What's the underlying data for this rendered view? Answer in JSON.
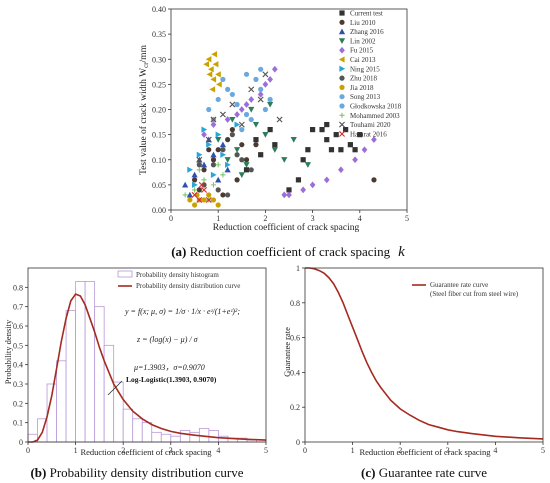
{
  "captions": {
    "a_prefix": "(a)",
    "a_text": "Reduction coefficient of crack spacing",
    "a_symbol": "k",
    "b_prefix": "(b)",
    "b_text": "Probability density distribution curve",
    "c_prefix": "(c)",
    "c_text": "Guarantee rate curve"
  },
  "chart_data": [
    {
      "id": "a",
      "type": "scatter",
      "xlabel": "Reduction coefficient of crack spacing",
      "ylabel": "Test value of crack width W",
      "ylabel_sub": "cr",
      "ylabel_unit": "/mm",
      "xlim": [
        0,
        5
      ],
      "ylim": [
        0,
        0.4
      ],
      "xticks": [
        "0",
        "1",
        "2",
        "3",
        "4",
        "5"
      ],
      "yticks": [
        "0.00",
        "0.05",
        "0.10",
        "0.15",
        "0.20",
        "0.25",
        "0.30",
        "0.35",
        "0.40"
      ],
      "legend_position": "right",
      "series": [
        {
          "name": "Current test",
          "color": "#333333",
          "marker": "square",
          "points": [
            [
              3.2,
              0.16
            ],
            [
              3.3,
              0.14
            ],
            [
              3.5,
              0.15
            ],
            [
              3.6,
              0.12
            ],
            [
              3.7,
              0.16
            ],
            [
              3.9,
              0.12
            ],
            [
              3.4,
              0.12
            ],
            [
              2.9,
              0.12
            ],
            [
              3.0,
              0.16
            ],
            [
              2.8,
              0.1
            ],
            [
              4.0,
              0.15
            ],
            [
              3.8,
              0.13
            ],
            [
              2.7,
              0.06
            ],
            [
              1.9,
              0.11
            ],
            [
              2.5,
              0.04
            ],
            [
              3.3,
              0.17
            ],
            [
              1.6,
              0.08
            ],
            [
              2.2,
              0.13
            ],
            [
              2.1,
              0.16
            ],
            [
              1.8,
              0.14
            ]
          ]
        },
        {
          "name": "Liu 2010",
          "color": "#4a3a30",
          "marker": "circle",
          "points": [
            [
              0.5,
              0.06
            ],
            [
              0.7,
              0.08
            ],
            [
              0.9,
              0.1
            ],
            [
              1.0,
              0.12
            ],
            [
              1.2,
              0.14
            ],
            [
              1.4,
              0.06
            ],
            [
              1.6,
              0.1
            ],
            [
              1.8,
              0.13
            ],
            [
              1.1,
              0.03
            ],
            [
              0.8,
              0.12
            ],
            [
              1.3,
              0.16
            ],
            [
              4.3,
              0.06
            ],
            [
              0.6,
              0.04
            ],
            [
              1.5,
              0.13
            ]
          ]
        },
        {
          "name": "Zhang 2016",
          "color": "#3050b0",
          "marker": "triangle-up",
          "points": [
            [
              0.3,
              0.05
            ],
            [
              0.5,
              0.07
            ],
            [
              0.7,
              0.09
            ],
            [
              0.9,
              0.11
            ],
            [
              1.1,
              0.13
            ],
            [
              0.4,
              0.03
            ],
            [
              0.6,
              0.1
            ],
            [
              1.0,
              0.06
            ],
            [
              0.8,
              0.14
            ],
            [
              1.2,
              0.08
            ]
          ]
        },
        {
          "name": "Lin 2002",
          "color": "#2e7d5a",
          "marker": "triangle-down",
          "points": [
            [
              1.0,
              0.14
            ],
            [
              1.2,
              0.1
            ],
            [
              1.4,
              0.12
            ],
            [
              1.6,
              0.09
            ],
            [
              1.8,
              0.17
            ],
            [
              2.0,
              0.15
            ],
            [
              2.2,
              0.12
            ],
            [
              2.4,
              0.1
            ],
            [
              2.6,
              0.14
            ],
            [
              2.9,
              0.09
            ],
            [
              1.3,
              0.18
            ],
            [
              1.7,
              0.2
            ],
            [
              2.1,
              0.21
            ],
            [
              1.5,
              0.07
            ]
          ]
        },
        {
          "name": "Fu 2015",
          "color": "#9b6fd6",
          "marker": "diamond",
          "points": [
            [
              2.5,
              0.03
            ],
            [
              2.8,
              0.04
            ],
            [
              3.0,
              0.05
            ],
            [
              3.3,
              0.06
            ],
            [
              3.6,
              0.08
            ],
            [
              3.9,
              0.1
            ],
            [
              4.1,
              0.12
            ],
            [
              4.3,
              0.14
            ],
            [
              2.2,
              0.28
            ],
            [
              2.0,
              0.25
            ],
            [
              1.9,
              0.23
            ],
            [
              1.7,
              0.22
            ],
            [
              1.5,
              0.2
            ],
            [
              1.2,
              0.18
            ],
            [
              0.9,
              0.17
            ],
            [
              0.7,
              0.15
            ],
            [
              2.1,
              0.26
            ],
            [
              2.4,
              0.03
            ],
            [
              1.6,
              0.21
            ],
            [
              1.4,
              0.19
            ]
          ]
        },
        {
          "name": "Cai 2013",
          "color": "#c9a200",
          "marker": "triangle-left",
          "points": [
            [
              0.8,
              0.3
            ],
            [
              0.85,
              0.28
            ],
            [
              0.9,
              0.26
            ],
            [
              0.95,
              0.29
            ],
            [
              1.0,
              0.27
            ],
            [
              0.75,
              0.29
            ],
            [
              0.88,
              0.24
            ],
            [
              0.92,
              0.31
            ],
            [
              1.02,
              0.25
            ],
            [
              0.82,
              0.27
            ]
          ]
        },
        {
          "name": "Ning 2015",
          "color": "#29a6d9",
          "marker": "triangle-right",
          "points": [
            [
              0.4,
              0.08
            ],
            [
              0.6,
              0.11
            ],
            [
              0.8,
              0.13
            ],
            [
              1.0,
              0.15
            ],
            [
              1.2,
              0.09
            ],
            [
              1.4,
              0.17
            ],
            [
              0.5,
              0.05
            ],
            [
              0.9,
              0.07
            ],
            [
              1.1,
              0.11
            ],
            [
              0.7,
              0.16
            ]
          ]
        },
        {
          "name": "Zhu 2018",
          "color": "#555555",
          "marker": "circle",
          "points": [
            [
              0.9,
              0.09
            ],
            [
              1.1,
              0.12
            ],
            [
              1.3,
              0.15
            ],
            [
              1.5,
              0.1
            ],
            [
              1.7,
              0.08
            ],
            [
              0.7,
              0.05
            ],
            [
              1.2,
              0.03
            ],
            [
              1.0,
              0.04
            ],
            [
              1.4,
              0.11
            ],
            [
              0.6,
              0.09
            ]
          ]
        },
        {
          "name": "Jia 2018",
          "color": "#c9a200",
          "marker": "circle",
          "points": [
            [
              0.5,
              0.01
            ],
            [
              0.6,
              0.02
            ],
            [
              0.7,
              0.02
            ],
            [
              0.8,
              0.03
            ],
            [
              0.9,
              0.02
            ],
            [
              1.0,
              0.01
            ],
            [
              0.4,
              0.02
            ],
            [
              0.55,
              0.03
            ]
          ]
        },
        {
          "name": "Song 2013",
          "color": "#6aa8e0",
          "marker": "circle",
          "points": [
            [
              0.8,
              0.2
            ],
            [
              1.0,
              0.22
            ],
            [
              1.2,
              0.24
            ],
            [
              1.4,
              0.21
            ],
            [
              1.6,
              0.19
            ],
            [
              1.1,
              0.26
            ],
            [
              0.9,
              0.18
            ],
            [
              1.3,
              0.23
            ]
          ]
        },
        {
          "name": "Głodkowska 2018",
          "color": "#6aa8e0",
          "marker": "circle",
          "points": [
            [
              1.6,
              0.27
            ],
            [
              1.9,
              0.24
            ],
            [
              2.1,
              0.22
            ],
            [
              1.8,
              0.26
            ],
            [
              2.0,
              0.2
            ],
            [
              1.7,
              0.18
            ],
            [
              1.5,
              0.16
            ],
            [
              1.9,
              0.28
            ]
          ]
        },
        {
          "name": "Mohammed 2003",
          "color": "#7fc86a",
          "marker": "plus",
          "points": [
            [
              0.3,
              0.03
            ],
            [
              0.5,
              0.04
            ],
            [
              0.7,
              0.06
            ],
            [
              0.9,
              0.05
            ],
            [
              1.1,
              0.07
            ],
            [
              0.6,
              0.08
            ],
            [
              0.8,
              0.02
            ],
            [
              1.0,
              0.09
            ]
          ]
        },
        {
          "name": "Touhami 2020",
          "color": "#555555",
          "marker": "cross",
          "points": [
            [
              0.9,
              0.18
            ],
            [
              1.3,
              0.21
            ],
            [
              1.7,
              0.24
            ],
            [
              2.0,
              0.27
            ],
            [
              2.3,
              0.18
            ],
            [
              1.1,
              0.19
            ],
            [
              0.8,
              0.14
            ],
            [
              1.5,
              0.17
            ],
            [
              1.9,
              0.22
            ],
            [
              0.6,
              0.1
            ]
          ]
        },
        {
          "name": "Hamrat 2016",
          "color": "#d9302c",
          "marker": "cross",
          "points": [
            [
              0.5,
              0.03
            ],
            [
              0.6,
              0.02
            ],
            [
              0.7,
              0.04
            ],
            [
              0.8,
              0.02
            ],
            [
              0.65,
              0.05
            ]
          ]
        }
      ]
    },
    {
      "id": "b",
      "type": "bar",
      "xlabel": "Reduction coefficient of crack spacing",
      "ylabel": "Probability density",
      "xlim": [
        0,
        5
      ],
      "ylim": [
        0,
        0.9
      ],
      "xticks": [
        "0",
        "1",
        "2",
        "3",
        "4",
        "5"
      ],
      "yticks": [
        "0",
        "0.1",
        "0.2",
        "0.3",
        "0.4",
        "0.5",
        "0.6",
        "0.7",
        "0.8"
      ],
      "bin_width": 0.2,
      "bin_starts": [
        0.0,
        0.2,
        0.4,
        0.6,
        0.8,
        1.0,
        1.2,
        1.4,
        1.6,
        1.8,
        2.0,
        2.2,
        2.4,
        2.6,
        2.8,
        3.0,
        3.2,
        3.4,
        3.6,
        3.8,
        4.0,
        4.2,
        4.4,
        4.6,
        4.8
      ],
      "histogram": [
        0.04,
        0.12,
        0.3,
        0.42,
        0.68,
        0.83,
        0.83,
        0.7,
        0.5,
        0.31,
        0.17,
        0.12,
        0.1,
        0.05,
        0.04,
        0.03,
        0.06,
        0.05,
        0.07,
        0.06,
        0.03,
        0.02,
        0.02,
        0.01,
        0.01
      ],
      "curve": {
        "x": [
          0,
          0.1,
          0.2,
          0.3,
          0.4,
          0.5,
          0.6,
          0.7,
          0.8,
          0.9,
          1.0,
          1.1,
          1.2,
          1.3,
          1.4,
          1.5,
          1.6,
          1.8,
          2.0,
          2.2,
          2.4,
          2.6,
          2.8,
          3.0,
          3.2,
          3.5,
          4.0,
          4.5,
          5.0
        ],
        "y": [
          0,
          0.0,
          0.01,
          0.05,
          0.13,
          0.24,
          0.38,
          0.52,
          0.64,
          0.73,
          0.765,
          0.755,
          0.71,
          0.64,
          0.57,
          0.49,
          0.42,
          0.3,
          0.22,
          0.16,
          0.12,
          0.09,
          0.07,
          0.055,
          0.045,
          0.035,
          0.022,
          0.015,
          0.01
        ]
      },
      "legend": [
        "Probability density histogram",
        "Probability density distribution curve"
      ],
      "legend_position": "top-right",
      "equation_1": "y = f(x; μ, σ) = 1/σ · 1/x · eᶻ/(1+eᶻ)²;",
      "equation_2": "z = (log(x) − μ) / σ",
      "params": "μ=1.3903，σ=0.9070",
      "annotation": "Log-Logistic(1.3903, 0.9070)",
      "hist_color": "#b79ad8",
      "curve_color": "#a52a1f"
    },
    {
      "id": "c",
      "type": "line",
      "xlabel": "Reduction coefficient of crack spacing",
      "ylabel": "Guarantee rate",
      "xlim": [
        0,
        5
      ],
      "ylim": [
        0,
        1
      ],
      "xticks": [
        "0",
        "1",
        "2",
        "3",
        "4",
        "5"
      ],
      "yticks": [
        "0",
        "0.2",
        "0.4",
        "0.6",
        "0.8",
        "1"
      ],
      "x": [
        0,
        0.1,
        0.2,
        0.3,
        0.4,
        0.5,
        0.6,
        0.7,
        0.8,
        0.9,
        1.0,
        1.1,
        1.2,
        1.3,
        1.4,
        1.5,
        1.6,
        1.8,
        2.0,
        2.2,
        2.4,
        2.6,
        2.8,
        3.0,
        3.2,
        3.5,
        4.0,
        4.5,
        5.0
      ],
      "y": [
        1.0,
        1.0,
        0.995,
        0.985,
        0.97,
        0.945,
        0.91,
        0.86,
        0.8,
        0.73,
        0.66,
        0.59,
        0.52,
        0.455,
        0.4,
        0.35,
        0.31,
        0.24,
        0.19,
        0.155,
        0.125,
        0.1,
        0.085,
        0.07,
        0.06,
        0.048,
        0.033,
        0.024,
        0.018
      ],
      "legend": [
        "Guarantee rate curve",
        "(Steel fiber cut from steel wire)"
      ],
      "legend_position": "top-right",
      "curve_color": "#a52a1f"
    }
  ]
}
